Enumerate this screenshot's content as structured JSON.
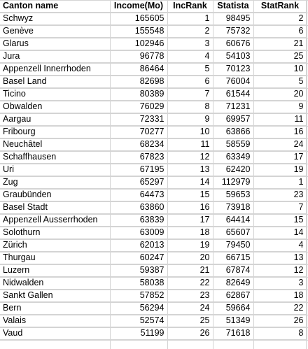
{
  "headers": [
    "Canton name",
    "Income(Mo)",
    "IncRank",
    "Statista",
    "StatRank"
  ],
  "rows": [
    [
      "Schwyz",
      "165605",
      "1",
      "98495",
      "2"
    ],
    [
      "Genève",
      "155548",
      "2",
      "75732",
      "6"
    ],
    [
      "Glarus",
      "102946",
      "3",
      "60676",
      "21"
    ],
    [
      "Jura",
      "96778",
      "4",
      "54103",
      "25"
    ],
    [
      "Appenzell Innerrhoden",
      "86464",
      "5",
      "70123",
      "10"
    ],
    [
      "Basel Land",
      "82698",
      "6",
      "76004",
      "5"
    ],
    [
      "Ticino",
      "80389",
      "7",
      "61544",
      "20"
    ],
    [
      "Obwalden",
      "76029",
      "8",
      "71231",
      "9"
    ],
    [
      "Aargau",
      "72331",
      "9",
      "69957",
      "11"
    ],
    [
      "Fribourg",
      "70277",
      "10",
      "63866",
      "16"
    ],
    [
      "Neuchâtel",
      "68234",
      "11",
      "58559",
      "24"
    ],
    [
      "Schaffhausen",
      "67823",
      "12",
      "63349",
      "17"
    ],
    [
      "Uri",
      "67195",
      "13",
      "62420",
      "19"
    ],
    [
      "Zug",
      "65297",
      "14",
      "112979",
      "1"
    ],
    [
      "Graubünden",
      "64473",
      "15",
      "59653",
      "23"
    ],
    [
      "Basel Stadt",
      "63860",
      "16",
      "73918",
      "7"
    ],
    [
      "Appenzell Ausserrhoden",
      "63839",
      "17",
      "64414",
      "15"
    ],
    [
      "Solothurn",
      "63009",
      "18",
      "65607",
      "14"
    ],
    [
      "Zürich",
      "62013",
      "19",
      "79450",
      "4"
    ],
    [
      "Thurgau",
      "60247",
      "20",
      "66715",
      "13"
    ],
    [
      "Luzern",
      "59387",
      "21",
      "67874",
      "12"
    ],
    [
      "Nidwalden",
      "58038",
      "22",
      "82649",
      "3"
    ],
    [
      "Sankt Gallen",
      "57852",
      "23",
      "62867",
      "18"
    ],
    [
      "Bern",
      "56294",
      "24",
      "59664",
      "22"
    ],
    [
      "Valais",
      "52574",
      "25",
      "51349",
      "26"
    ],
    [
      "Vaud",
      "51199",
      "26",
      "71618",
      "8"
    ]
  ]
}
